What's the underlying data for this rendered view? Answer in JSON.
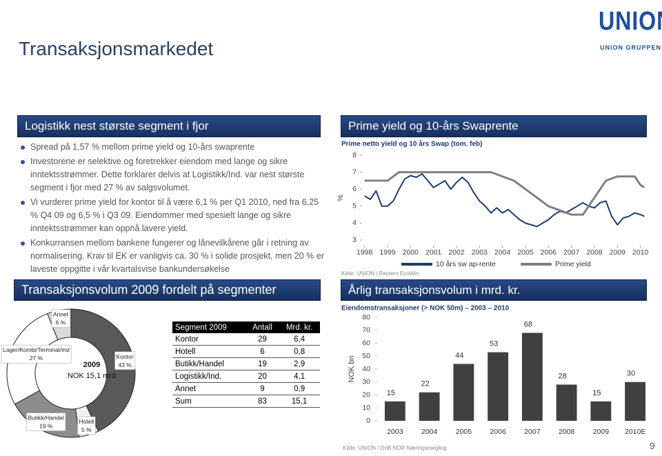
{
  "header": {
    "title": "Transaksjonsmarkedet",
    "logo": "UNION",
    "logo_sub": "UNION GRUPPEN",
    "page_number": "9"
  },
  "left": {
    "heading": "Logistikk nest største segment i fjor",
    "bullets": [
      "Spread på 1,57 % mellom prime yield og 10-års swaprente",
      "Investorene er selektive og foretrekker eiendom med lange og sikre inntektsstrømmer. Dette forklarer delvis at Logistikk/Ind. var nest største segment i fjor med 27 % av salgsvolumet.",
      "Vi vurderer prime yield for kontor til å være 6,1 % per Q1 2010, ned fra 6,25 % Q4 09 og 6,5 % i Q3 09. Eiendommer med spesielt lange og sikre inntektsstrømmer kan oppnå lavere yield.",
      "Konkurransen mellom bankene fungerer og lånevilkårene går i retning av normalisering. Krav til EK er vanligvis ca. 30 % i solide prosjekt, men 20 % er laveste oppgitte i vår kvartalsvise bankundersøkelse"
    ],
    "heading2": "Transaksjonsvolum 2009 fordelt på segmenter"
  },
  "table": {
    "header": [
      "Segment 2009",
      "Antall",
      "Mrd. kr."
    ],
    "rows": [
      [
        "Kontor",
        "29",
        "6,4"
      ],
      [
        "Hotell",
        "6",
        "0,8"
      ],
      [
        "Butikk/Handel",
        "19",
        "2,9"
      ],
      [
        "Logistikk/Ind.",
        "20",
        "4,1"
      ],
      [
        "Annet",
        "9",
        "0,9"
      ],
      [
        "Sum",
        "83",
        "15,1"
      ]
    ]
  },
  "chart_data": [
    {
      "type": "pie",
      "center_label": [
        "2009",
        "NOK 15,1 mrd"
      ],
      "categories": [
        "Kontor",
        "Hotell",
        "Butikk/Handel",
        "Lager/Kombi/Terminal/Ind",
        "Annet"
      ],
      "values": [
        43,
        5,
        19,
        27,
        6
      ],
      "value_labels": [
        "43 %",
        "5 %",
        "19 %",
        "27 %",
        "6 %"
      ],
      "colors": [
        "#595959",
        "#f2f2f2",
        "#8c8c8c",
        "#ffffff",
        "#d9d9d9"
      ]
    },
    {
      "type": "line",
      "title": "Prime yield og 10-års Swaprente",
      "subtitle": "Prime netto yield og 10 års Swap (tom. feb)",
      "ylabel": "%",
      "xlim": [
        1997.8,
        2010.4
      ],
      "xticks": [
        1998,
        1999,
        2000,
        2001,
        2002,
        2003,
        2004,
        2005,
        2006,
        2007,
        2008,
        2009,
        2010
      ],
      "ylim": [
        3,
        8
      ],
      "yticks": [
        3,
        4,
        5,
        6,
        7,
        8
      ],
      "source": "Kilde: UNION / Reuters EcoWin",
      "series": [
        {
          "name": "10 års sw ap-rente",
          "color": "#1f3a6e",
          "x": [
            1998,
            1998.25,
            1998.5,
            1998.75,
            1999,
            1999.25,
            1999.5,
            1999.75,
            2000,
            2000.25,
            2000.5,
            2000.75,
            2001,
            2001.25,
            2001.5,
            2001.75,
            2002,
            2002.25,
            2002.5,
            2002.75,
            2003,
            2003.25,
            2003.5,
            2003.75,
            2004,
            2004.25,
            2004.5,
            2004.75,
            2005,
            2005.25,
            2005.5,
            2005.75,
            2006,
            2006.25,
            2006.5,
            2006.75,
            2007,
            2007.25,
            2007.5,
            2007.75,
            2008,
            2008.25,
            2008.5,
            2008.75,
            2009,
            2009.25,
            2009.5,
            2009.75,
            2010,
            2010.17
          ],
          "values": [
            5.6,
            5.4,
            5.9,
            5.0,
            5.0,
            5.3,
            6.0,
            6.6,
            6.8,
            6.7,
            6.9,
            6.5,
            6.1,
            6.3,
            6.5,
            6.0,
            6.4,
            6.7,
            6.4,
            5.8,
            5.3,
            5.0,
            4.6,
            4.9,
            4.6,
            4.8,
            4.5,
            4.2,
            4.0,
            3.9,
            3.8,
            4.0,
            4.2,
            4.5,
            4.7,
            4.6,
            4.8,
            5.0,
            5.2,
            5.0,
            4.9,
            5.2,
            5.3,
            4.4,
            3.9,
            4.3,
            4.4,
            4.6,
            4.5,
            4.4
          ]
        },
        {
          "name": "Prime yield",
          "color": "#808080",
          "x": [
            1998,
            1999,
            1999.5,
            2000,
            2003.5,
            2004,
            2004.5,
            2005,
            2005.5,
            2006,
            2006.5,
            2007,
            2007.5,
            2008,
            2008.5,
            2009,
            2009.75,
            2010,
            2010.17
          ],
          "values": [
            6.5,
            6.5,
            7.0,
            7.0,
            7.0,
            6.75,
            6.5,
            6.0,
            5.5,
            5.0,
            4.75,
            4.5,
            4.5,
            5.5,
            6.5,
            6.75,
            6.75,
            6.25,
            6.1
          ]
        }
      ]
    },
    {
      "type": "bar",
      "title": "Årlig transaksjonsvolum i mrd. kr.",
      "subtitle": "Eiendomstransaksjoner (> NOK 50m) – 2003 – 2010",
      "ylabel": "NOK bn",
      "categories": [
        "2003",
        "2004",
        "2005",
        "2006",
        "2007",
        "2008",
        "2009",
        "2010E"
      ],
      "values": [
        15,
        22,
        44,
        53,
        68,
        28,
        15,
        30
      ],
      "color": "#404040",
      "ylim": [
        0,
        80
      ],
      "yticks": [
        0,
        10,
        20,
        30,
        40,
        50,
        60,
        70,
        80
      ],
      "source": "Kilde: UNION / DnB NOR Næringsmegling"
    }
  ]
}
